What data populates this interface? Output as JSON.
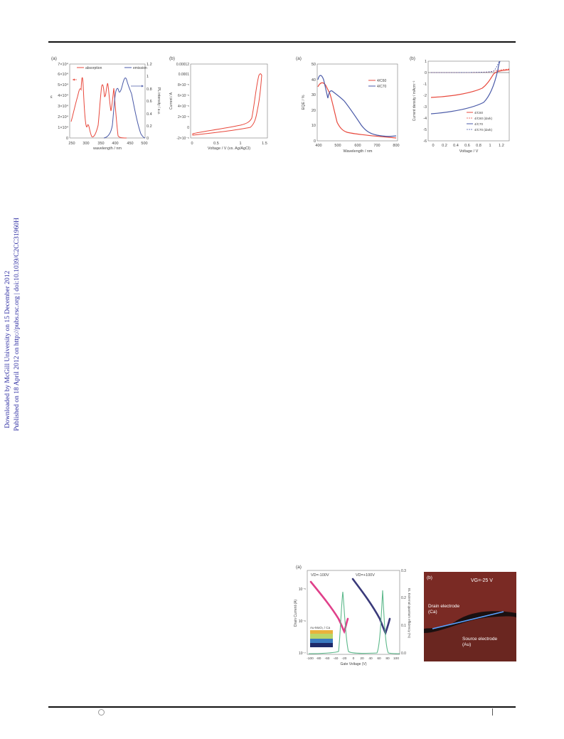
{
  "sidebar": {
    "line1": "Downloaded by McGill University on 15 December 2012",
    "line2": "Published on 18 April 2012 on http://pubs.rsc.org | doi:10.1039/C2CC31960H"
  },
  "fig_abs": {
    "panel_a": "(a)",
    "panel_b": "(b)",
    "legend_abs": "absorption",
    "legend_em": "emission",
    "a_xlabel": "wavelength / nm",
    "a_ylabel": "ε",
    "a_ylabel_r": "PL intensity / a.u.",
    "a_xticks": [
      "250",
      "300",
      "350",
      "400",
      "450",
      "500"
    ],
    "a_yticks": [
      "0",
      "1×10⁴",
      "2×10⁴",
      "3×10⁴",
      "4×10⁴",
      "5×10⁴",
      "6×10⁴",
      "7×10⁴"
    ],
    "a_ryticks": [
      "0",
      "0.2",
      "0.4",
      "0.6",
      "0.8",
      "1",
      "1.2"
    ],
    "b_xlabel": "Voltage / V (vs. Ag/AgCl)",
    "b_ylabel": "Current / A",
    "b_xticks": [
      "0",
      "0.5",
      "1",
      "1.5"
    ],
    "b_yticks": [
      "-2×10⁻⁵",
      "0",
      "2×10⁻⁵",
      "4×10⁻⁵",
      "6×10⁻⁵",
      "8×10⁻⁵",
      "0.0001",
      "0.00012"
    ]
  },
  "fig_pv": {
    "panel_a": "(a)",
    "panel_b": "(b)",
    "a_legend": [
      "4/C60",
      "4/C70"
    ],
    "a_xlabel": "Wavelength / nm",
    "a_ylabel": "EQE / %",
    "a_xticks": [
      "400",
      "500",
      "600",
      "700",
      "800"
    ],
    "a_yticks": [
      "0",
      "10",
      "20",
      "30",
      "40",
      "50"
    ],
    "b_legend": [
      "4/C60",
      "4/C60 (dark)",
      "4/C70",
      "4/C70 (dark)"
    ],
    "b_xlabel": "Voltage / V",
    "b_ylabel": "Current density / mAcm⁻²",
    "b_xticks": [
      "0",
      "0.2",
      "0.4",
      "0.6",
      "0.8",
      "1",
      "1.2"
    ],
    "b_yticks": [
      "1",
      "0",
      "-1",
      "-2",
      "-3",
      "-4",
      "-5",
      "-6"
    ]
  },
  "fig_fet": {
    "panel_a": "(a)",
    "panel_b": "(b)",
    "vd_neg": "VD=-100V",
    "vd_pos": "VD=+100V",
    "xlabel": "Gate Voltage (V)",
    "ylabel": "Drain Current (A)",
    "ylabel_r": "EL External quantum efficiency (%)",
    "xticks": [
      "-100",
      "-80",
      "-60",
      "-40",
      "-20",
      "0",
      "20",
      "40",
      "60",
      "80",
      "100"
    ],
    "ryticks": [
      "0.0",
      "0.1",
      "0.2",
      "0.3"
    ],
    "yticks": [
      "10⁻⁵",
      "10⁻⁶",
      "10⁻⁷"
    ],
    "inset_label": "Au-MoO₃ / Ca",
    "b_vg": "VG=-25 V",
    "drain_label_1": "Drain electrode",
    "drain_label_2": "(Ca)",
    "source_label_1": "Source electrode",
    "source_label_2": "(Au)"
  },
  "colors": {
    "red": "#e8483c",
    "blue": "#4a5aa8",
    "magenta": "#e0408a",
    "navy": "#3a3a7a",
    "green": "#5cb88a"
  }
}
